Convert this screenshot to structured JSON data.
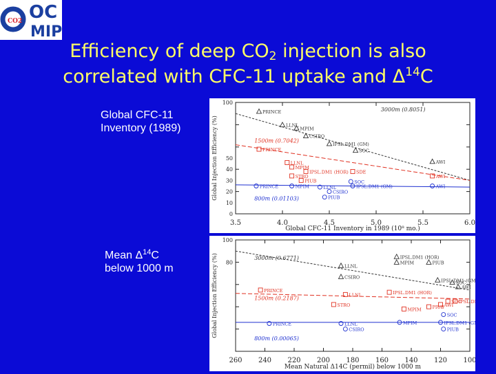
{
  "logo": {
    "line1": "OC",
    "line2": "MIP",
    "badge": "CO2",
    "colors": {
      "ring": "#1b3fa0",
      "text": "#1b3fa0",
      "badge": "#d8202a"
    }
  },
  "title": {
    "line1_a": "Efficiency of deep CO",
    "line1_sub": "2",
    "line1_b": " injection is also",
    "line2_a": "correlated with CFC-11 uptake and Δ",
    "line2_sup": "14",
    "line2_b": "C"
  },
  "panel1_label": {
    "line1": "Global CFC-11",
    "line2": "Inventory (1989)"
  },
  "panel2_label": {
    "line1_a": "Mean Δ",
    "line1_sup": "14",
    "line1_b": "C",
    "line2": "below 1000 m"
  },
  "colors": {
    "background": "#0b0bd6",
    "title": "#ffff66",
    "series_3000": "#333333",
    "series_1500": "#e03020",
    "series_800": "#1d2fd0"
  },
  "chart_data": [
    {
      "type": "scatter",
      "xlabel": "Global CFC-11 Inventory in 1989 (10⁸ mo.)",
      "ylabel": "Global Injection Efficiency (%)",
      "xlim": [
        3.5,
        6.0
      ],
      "ylim": [
        0,
        100
      ],
      "xticks": [
        "3.5",
        "4.0",
        "4.5",
        "5.0",
        "5.5",
        "6.0"
      ],
      "yticks": [
        "0",
        "20",
        "40",
        "60",
        "80",
        "100"
      ],
      "yticks_printed": [
        "0",
        "10",
        "20",
        "30",
        "40",
        "50",
        "100"
      ],
      "grid": false,
      "series": [
        {
          "name": "3000m (0.8051)",
          "key": "s3000",
          "fit": [
            [
              3.5,
              90
            ],
            [
              6.0,
              30
            ]
          ],
          "points": [
            {
              "label": "PRINCE",
              "x": 3.75,
              "y": 92
            },
            {
              "label": "LLNL",
              "x": 4.0,
              "y": 80
            },
            {
              "label": "MPIM",
              "x": 4.15,
              "y": 77
            },
            {
              "label": "CSIRO",
              "x": 4.25,
              "y": 70
            },
            {
              "label": "IPSL.DM1 (GM)",
              "x": 4.5,
              "y": 63
            },
            {
              "label": "SOC",
              "x": 4.78,
              "y": 57
            },
            {
              "label": "AWI",
              "x": 5.6,
              "y": 47
            }
          ]
        },
        {
          "name": "1500m (0.7042)",
          "key": "s1500",
          "fit": [
            [
              3.5,
              62
            ],
            [
              6.0,
              30
            ]
          ],
          "points": [
            {
              "label": "PRINCE",
              "x": 3.75,
              "y": 58
            },
            {
              "label": "LLNL",
              "x": 4.05,
              "y": 46
            },
            {
              "label": "MPIM",
              "x": 4.1,
              "y": 42
            },
            {
              "label": "IPSL.DM1 (HOR)",
              "x": 4.25,
              "y": 38
            },
            {
              "label": "SDE",
              "x": 4.75,
              "y": 38
            },
            {
              "label": "STRO",
              "x": 4.1,
              "y": 34
            },
            {
              "label": "PIUB",
              "x": 4.2,
              "y": 30
            },
            {
              "label": "AWI",
              "x": 5.6,
              "y": 34
            }
          ]
        },
        {
          "name": "800m (0.01103)",
          "key": "s800",
          "fit": [
            [
              3.5,
              26
            ],
            [
              6.0,
              24
            ]
          ],
          "points": [
            {
              "label": "PRINCE",
              "x": 3.72,
              "y": 25
            },
            {
              "label": "MPIM",
              "x": 4.1,
              "y": 25
            },
            {
              "label": "LLNL",
              "x": 4.4,
              "y": 24
            },
            {
              "label": "IPSL.DM1 (GM)",
              "x": 4.75,
              "y": 25
            },
            {
              "label": "SOC",
              "x": 4.73,
              "y": 29
            },
            {
              "label": "CSIRO",
              "x": 4.5,
              "y": 20
            },
            {
              "label": "PIUB",
              "x": 4.45,
              "y": 15
            },
            {
              "label": "AWI",
              "x": 5.6,
              "y": 25
            }
          ]
        }
      ]
    },
    {
      "type": "scatter",
      "xlabel": "Mean Natural Δ14C (permil) below 1000 m",
      "ylabel": "Global Injection Efficiency (%)",
      "xlim": [
        -260,
        -100
      ],
      "ylim": [
        0,
        100
      ],
      "xticks": [
        "260",
        "240",
        "220",
        "200",
        "180",
        "160",
        "140",
        "120",
        "100"
      ],
      "yticks": [
        "0",
        "20",
        "40",
        "60",
        "80",
        "100"
      ],
      "yticks_printed": [
        "100",
        "80"
      ],
      "grid": false,
      "series": [
        {
          "name": "3000m (0.6771)",
          "key": "s3000",
          "fit": [
            [
              -260,
              90
            ],
            [
              -100,
              55
            ]
          ],
          "points": [
            {
              "label": "LLNL",
              "x": -188,
              "y": 77
            },
            {
              "label": "IPSL.DM1 (HOR)",
              "x": -150,
              "y": 85
            },
            {
              "label": "MPIM",
              "x": -150,
              "y": 80
            },
            {
              "label": "PIUB",
              "x": -128,
              "y": 80
            },
            {
              "label": "CSIRO",
              "x": -188,
              "y": 67
            },
            {
              "label": "IPSL.DM1 (GM)",
              "x": -122,
              "y": 64
            },
            {
              "label": "SOC",
              "x": -112,
              "y": 62
            },
            {
              "label": "AWI",
              "x": -108,
              "y": 58
            }
          ]
        },
        {
          "name": "1500m (0.2187)",
          "key": "s1500",
          "fit": [
            [
              -260,
              52
            ],
            [
              -100,
              47
            ]
          ],
          "points": [
            {
              "label": "PRINCE",
              "x": -243,
              "y": 55
            },
            {
              "label": "LLNL",
              "x": -185,
              "y": 51
            },
            {
              "label": "IPSL.DM1 (HOR)",
              "x": -155,
              "y": 53
            },
            {
              "label": "STRO",
              "x": -193,
              "y": 42
            },
            {
              "label": "IPSL.DM1 (GM)",
              "x": -110,
              "y": 45
            },
            {
              "label": "PIUB",
              "x": -128,
              "y": 40
            },
            {
              "label": "SOC",
              "x": -115,
              "y": 45
            },
            {
              "label": "AWI",
              "x": -120,
              "y": 42
            },
            {
              "label": "MPIM",
              "x": -145,
              "y": 38
            }
          ]
        },
        {
          "name": "800m (0.00065)",
          "key": "s800",
          "fit": [
            [
              -260,
              26
            ],
            [
              -100,
              26
            ]
          ],
          "points": [
            {
              "label": "PRINCE",
              "x": -237,
              "y": 25
            },
            {
              "label": "LLNL",
              "x": -188,
              "y": 25
            },
            {
              "label": "CSIRO",
              "x": -185,
              "y": 20
            },
            {
              "label": "MPIM",
              "x": -148,
              "y": 26
            },
            {
              "label": "IPSL.DM1 (GM)",
              "x": -120,
              "y": 26
            },
            {
              "label": "SOC",
              "x": -118,
              "y": 33
            },
            {
              "label": "PIUB",
              "x": -118,
              "y": 20
            }
          ]
        }
      ]
    }
  ]
}
